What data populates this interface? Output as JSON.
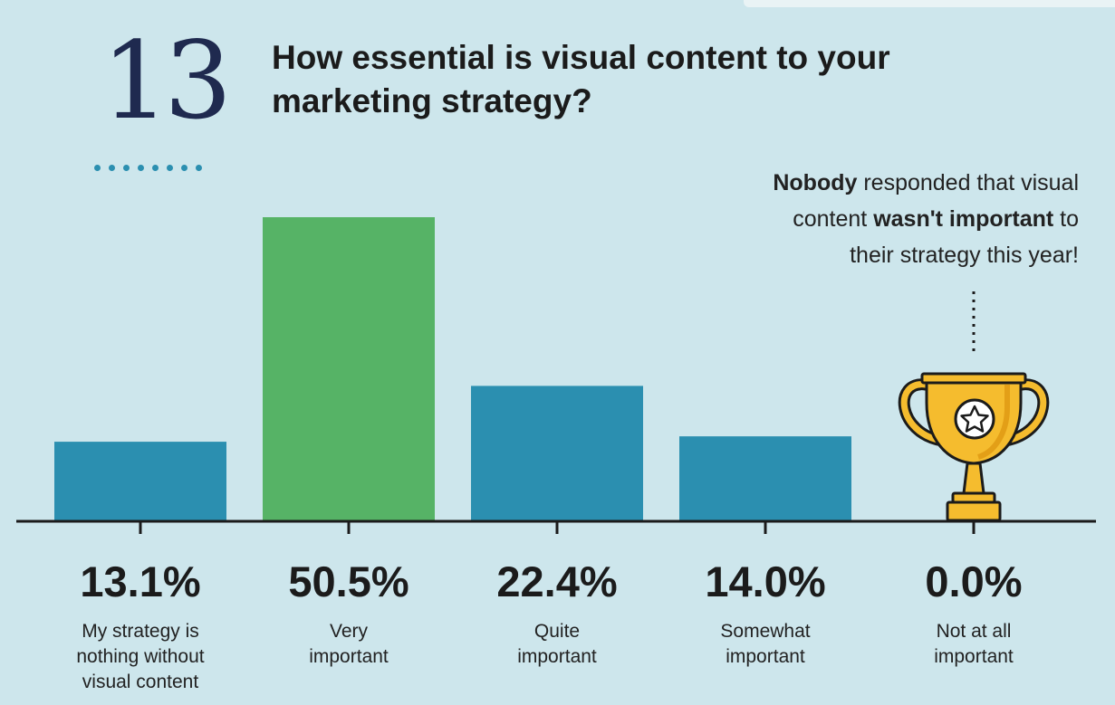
{
  "header": {
    "number": "13",
    "title_line1": "How essential is visual content to your",
    "title_line2": "marketing strategy?"
  },
  "note": {
    "part1": "Nobody",
    "part2": " responded that visual",
    "part3": "content ",
    "part4": "wasn't important",
    "part5": " to",
    "part6": "their strategy this year!"
  },
  "icons": {
    "trophy": "trophy-icon"
  },
  "colors": {
    "background": "#cde6ec",
    "bar_default": "#2b8fb0",
    "bar_highlight": "#56b366",
    "axis": "#1b1b1b",
    "trophy_gold": "#f5bc2e"
  },
  "chart_data": {
    "type": "bar",
    "title": "How essential is visual content to your marketing strategy?",
    "categories": [
      "My strategy is nothing without visual content",
      "Very important",
      "Quite important",
      "Somewhat important",
      "Not at all important"
    ],
    "category_lines": [
      [
        "My strategy is",
        "nothing without",
        "visual content"
      ],
      [
        "Very",
        "important"
      ],
      [
        "Quite",
        "important"
      ],
      [
        "Somewhat",
        "important"
      ],
      [
        "Not at all",
        "important"
      ]
    ],
    "values": [
      13.1,
      50.5,
      22.4,
      14.0,
      0.0
    ],
    "value_labels": [
      "13.1%",
      "50.5%",
      "22.4%",
      "14.0%",
      "0.0%"
    ],
    "highlight_index": 1,
    "ylim": [
      0,
      50.5
    ],
    "xlabel": "",
    "ylabel": "",
    "grid": false
  }
}
